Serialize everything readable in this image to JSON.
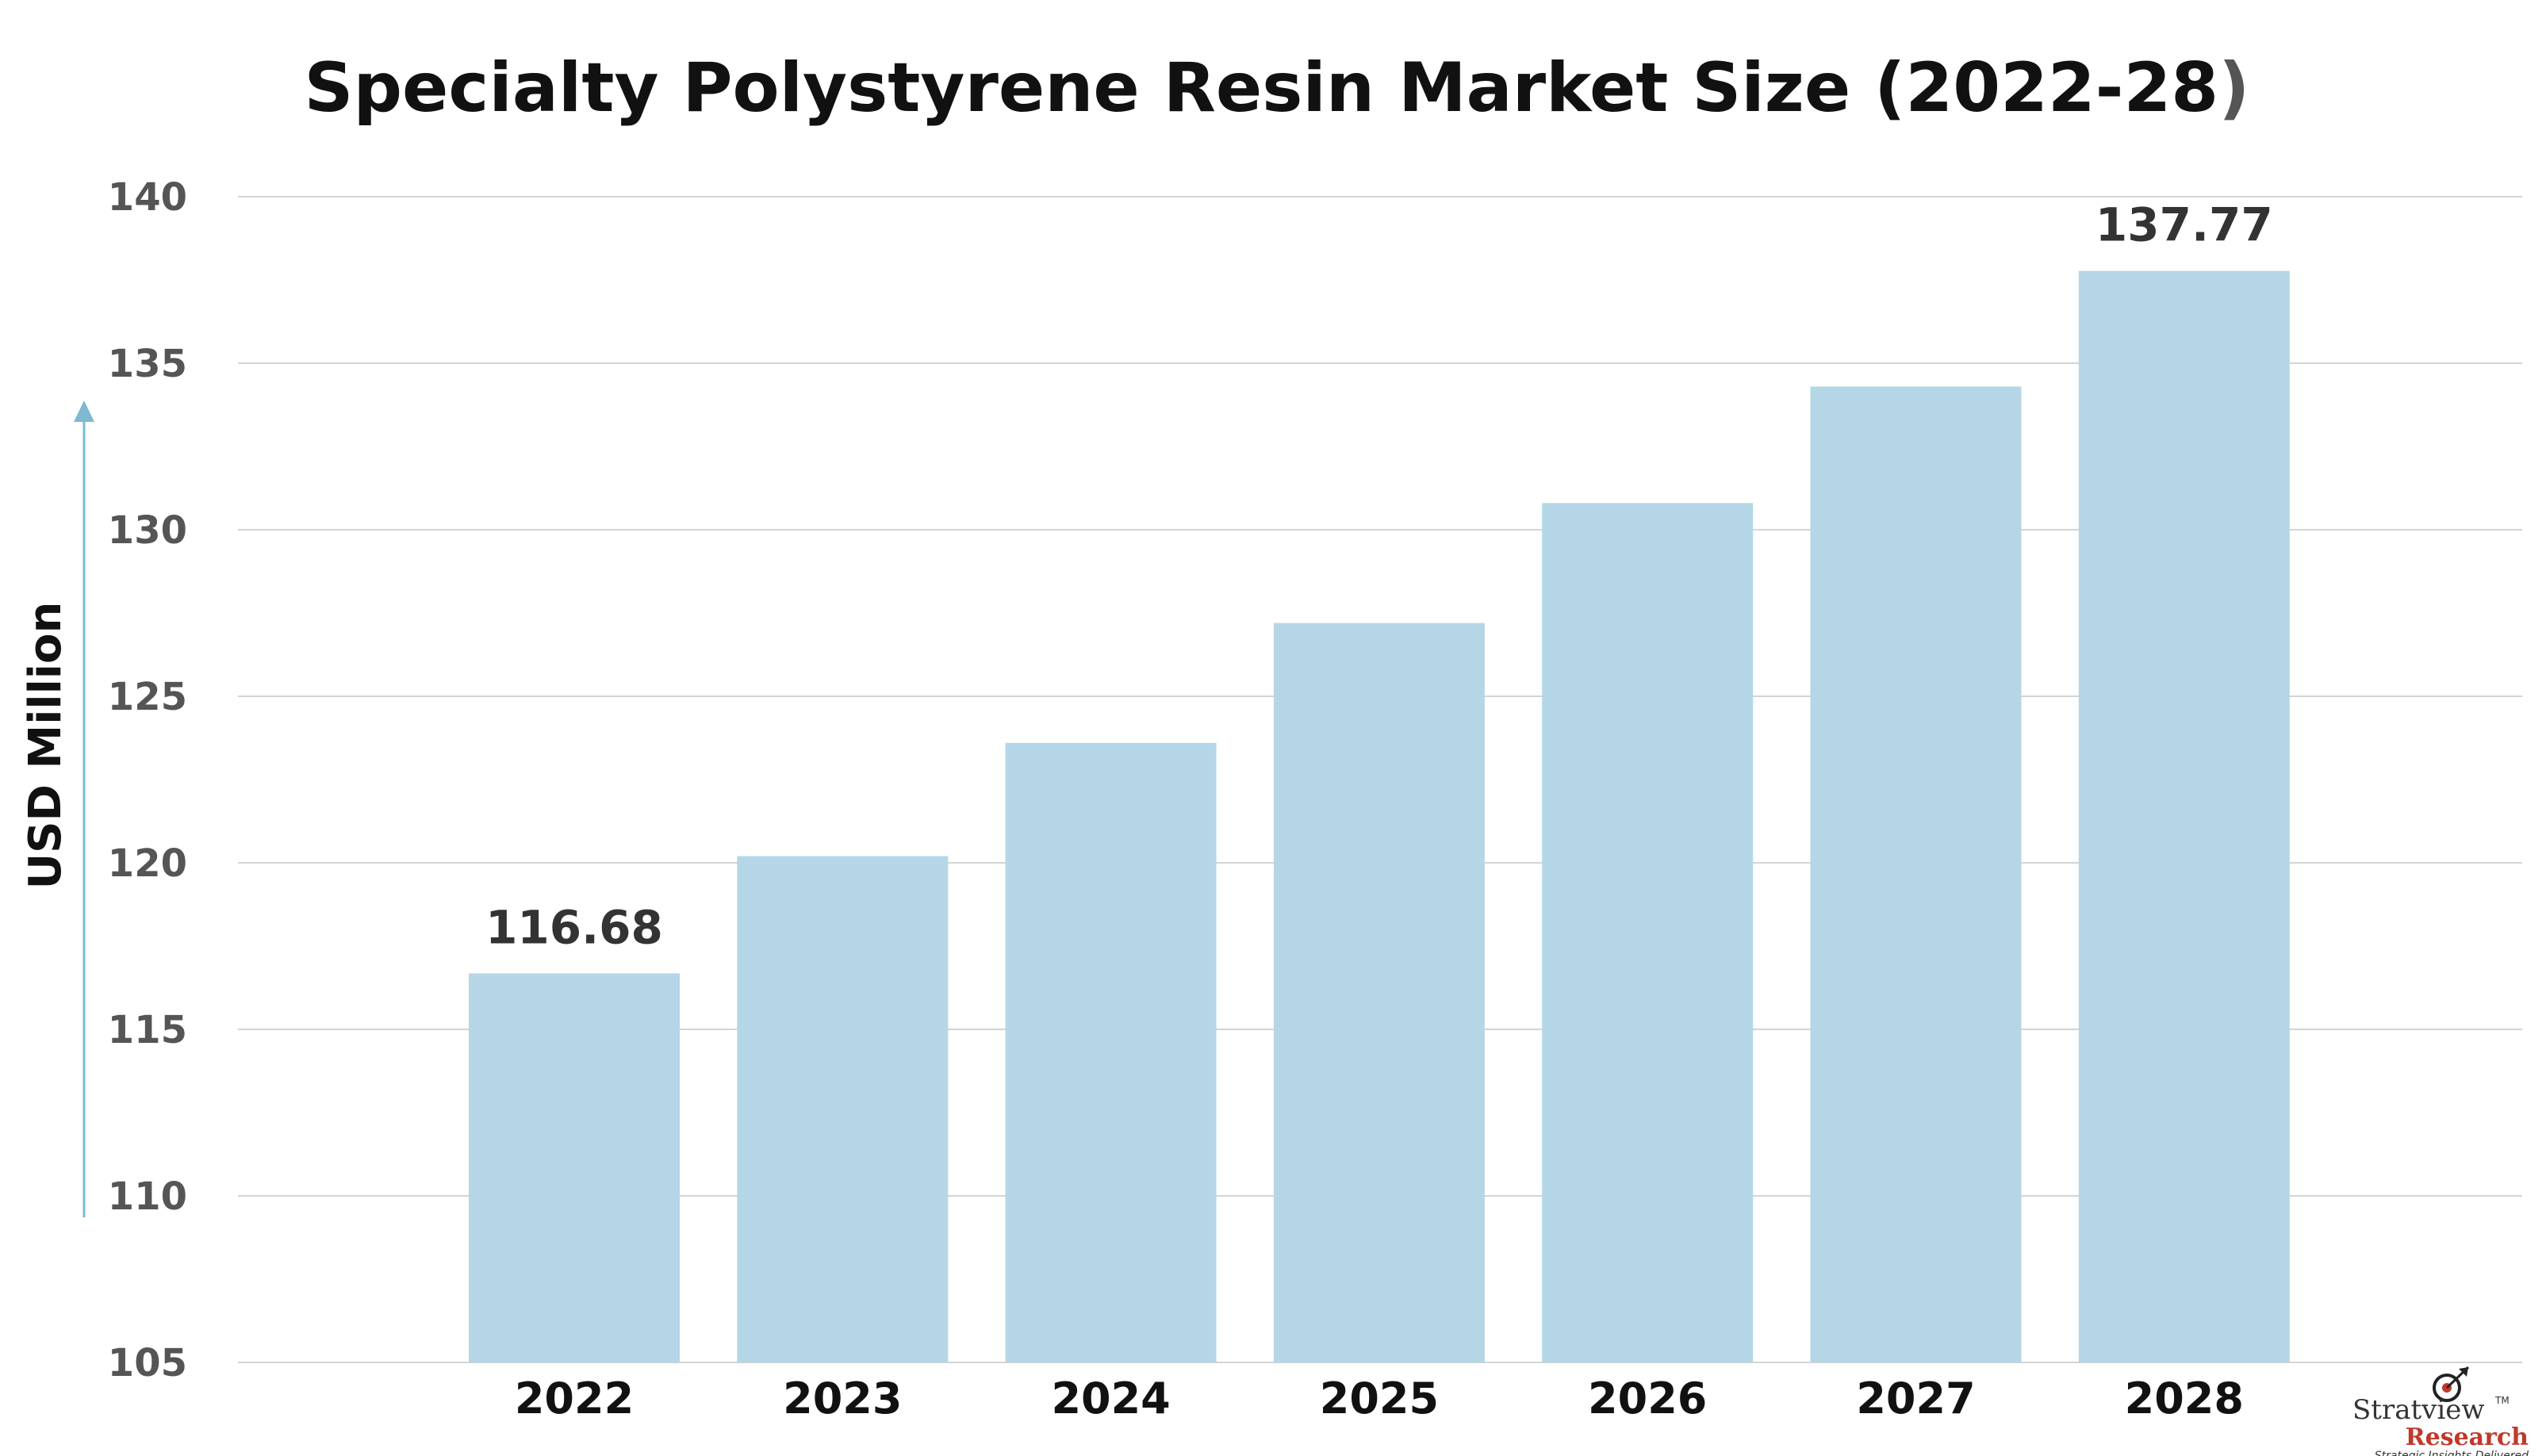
{
  "chart_data": {
    "type": "bar",
    "title_main": "Specialty Polystyrene Resin Market Size (2022-28",
    "title_close": ")",
    "ylabel": "USD Million",
    "xlabel": "",
    "categories": [
      "2022",
      "2023",
      "2024",
      "2025",
      "2026",
      "2027",
      "2028"
    ],
    "values": [
      116.68,
      120.2,
      123.6,
      127.2,
      130.8,
      134.3,
      137.77
    ],
    "data_labels": [
      "116.68",
      "",
      "",
      "",
      "",
      "",
      "137.77"
    ],
    "ylim": [
      105,
      140
    ],
    "yticks": [
      105,
      110,
      115,
      120,
      125,
      130,
      135,
      140
    ],
    "grid": true,
    "bar_color": "#b5d6e6",
    "arrow_color": "#7fb9d1"
  },
  "logo": {
    "name": "Stratview",
    "tm": "TM",
    "sub": "Research",
    "tagline": "Strategic Insights Delivered"
  }
}
